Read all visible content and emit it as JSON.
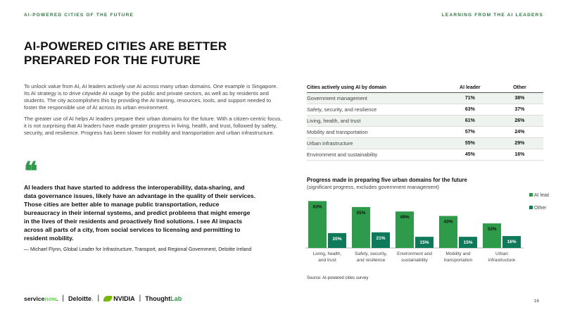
{
  "header": {
    "left": "AI-POWERED CITIES OF THE FUTURE",
    "right": "LEARNING FROM THE AI LEADERS"
  },
  "title_line1": "AI-POWERED CITIES ARE BETTER",
  "title_line2": "PREPARED FOR THE FUTURE",
  "body": {
    "p1": "To unlock value from AI, AI leaders actively use AI across many urban domains. One example is Singapore. Its AI strategy is to drive citywide AI usage by the public and private sectors, as well as by residents and students. The city accomplishes this by providing the AI training, resources, tools, and support needed to foster the responsible use of AI across its urban environment.",
    "p2": "The greater use of AI helps AI leaders prepare their urban domains for the future. With a citizen-centric focus, it is not surprising that AI leaders have made greater progress in living, health, and trust, followed by safety, security, and resilience. Progress has been slower for mobility and transportation and urban infrastructure."
  },
  "quote": {
    "mark": "❝",
    "text": "AI leaders that have started to address the interoperability, data-sharing, and data governance issues, likely have an advantage in the quality of their services. Those cities are better able to manage public transportation, reduce bureaucracy in their internal systems, and predict problems that might emerge in the lives of their residents and proactively find solutions. I see AI impacts across all parts of a city, from social services to licensing and permitting to resident mobility.",
    "attribution": "— Michael Flynn, Global Leader for Infrastructure, Transport, and Regional Government, Deloitte Ireland"
  },
  "table": {
    "title": "Cities actively using AI by domain",
    "col_leader": "AI leader",
    "col_other": "Other",
    "rows": [
      {
        "domain": "Government management",
        "leader": "71%",
        "other": "38%"
      },
      {
        "domain": "Safety, security, and resilience",
        "leader": "63%",
        "other": "37%"
      },
      {
        "domain": "Living, health, and trust",
        "leader": "61%",
        "other": "26%"
      },
      {
        "domain": "Mobility and transportation",
        "leader": "57%",
        "other": "24%"
      },
      {
        "domain": "Urban infrastructure",
        "leader": "55%",
        "other": "29%"
      },
      {
        "domain": "Environment and sustainability",
        "leader": "45%",
        "other": "16%"
      }
    ]
  },
  "chart_data": {
    "type": "bar",
    "title": "Progress made in preparing five urban domains for the future",
    "subtitle": "(significant progress, excludes government management)",
    "categories": [
      [
        "Living, health,",
        "and trust"
      ],
      [
        "Safety, security,",
        "and resilience"
      ],
      [
        "Environment and",
        "sustainability"
      ],
      [
        "Mobility and",
        "transportation"
      ],
      [
        "Urban",
        "infrastructure"
      ]
    ],
    "series": [
      {
        "name": "AI leader",
        "values": [
          63,
          55,
          49,
          43,
          33
        ],
        "color": "#2e9b4a"
      },
      {
        "name": "Other",
        "values": [
          20,
          21,
          15,
          15,
          16
        ],
        "color": "#0f7a5a"
      }
    ],
    "value_suffix": "%",
    "ylim": [
      0,
      70
    ],
    "legend": "right"
  },
  "source": "Source: AI-powered cities survey",
  "logos": {
    "servicenow_a": "service",
    "servicenow_b": "now",
    "servicenow_c": ".",
    "deloitte": "Deloitte",
    "deloitte_dot": ".",
    "nvidia": "NVIDIA",
    "thought": "Thought",
    "lab": "Lab",
    "sep": "|"
  },
  "page_number": "16",
  "colors": {
    "accent": "#2e9b4a",
    "dark_green": "#0f7a5a",
    "header_green": "#2b7a3f"
  }
}
